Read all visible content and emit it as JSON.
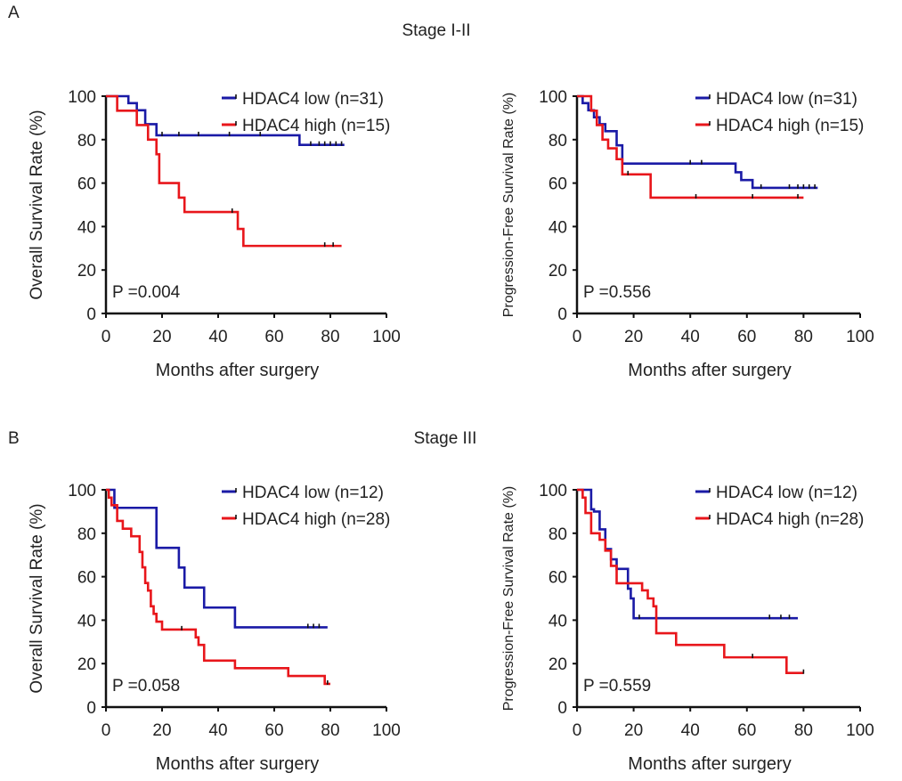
{
  "figure": {
    "panel_a_letter": "A",
    "panel_a_title": "Stage I-II",
    "panel_b_letter": "B",
    "panel_b_title": "Stage III"
  },
  "colors": {
    "low": "#1a1aa6",
    "high": "#e8161b",
    "axis": "#111111"
  },
  "chart_data": [
    {
      "type": "line",
      "subtype": "kaplan-meier",
      "panel": "A",
      "title": "Stage I-II",
      "xlabel": "Months after surgery",
      "ylabel": "Overall Survival Rate (%)",
      "xlim": [
        0,
        100
      ],
      "ylim": [
        0,
        100
      ],
      "xticks": [
        "0",
        "20",
        "40",
        "60",
        "80",
        "100"
      ],
      "yticks": [
        "0",
        "20",
        "40",
        "60",
        "80",
        "100"
      ],
      "p_value": "P =0.004",
      "legend_position": "top-right",
      "series": [
        {
          "name": "HDAC4 low (n=31)",
          "color": "#1a1aa6",
          "x": [
            0,
            8,
            11,
            14,
            18,
            69,
            85
          ],
          "y": [
            100,
            96.8,
            93.5,
            87.1,
            82,
            77.6,
            77.6
          ],
          "censor_x": [
            20,
            26,
            33,
            44,
            55,
            73,
            76,
            78,
            80,
            82,
            84
          ]
        },
        {
          "name": "HDAC4 high (n=15)",
          "color": "#e8161b",
          "x": [
            0,
            4,
            11,
            15,
            18,
            19,
            26,
            28,
            47,
            49,
            84
          ],
          "y": [
            100,
            93.3,
            86.7,
            80,
            73.3,
            60,
            53.3,
            46.7,
            38.9,
            31.1,
            31.1
          ],
          "censor_x": [
            45,
            78,
            81
          ]
        }
      ]
    },
    {
      "type": "line",
      "subtype": "kaplan-meier",
      "panel": "A",
      "title": "Stage I-II",
      "xlabel": "Months after surgery",
      "ylabel": "Progression-Free Survival Rate (%)",
      "xlim": [
        0,
        100
      ],
      "ylim": [
        0,
        100
      ],
      "xticks": [
        "0",
        "20",
        "40",
        "60",
        "80",
        "100"
      ],
      "yticks": [
        "0",
        "20",
        "40",
        "60",
        "80",
        "100"
      ],
      "p_value": "P =0.556",
      "legend_position": "top-right",
      "series": [
        {
          "name": "HDAC4 low (n=31)",
          "color": "#1a1aa6",
          "x": [
            0,
            2,
            4,
            6,
            8,
            10,
            14,
            16,
            56,
            58,
            62,
            85
          ],
          "y": [
            100,
            96.8,
            93.5,
            90.3,
            87.1,
            83.9,
            77.4,
            69,
            65,
            61.4,
            57.8,
            57.8
          ],
          "censor_x": [
            40,
            44,
            65,
            75,
            78,
            80,
            82,
            84
          ]
        },
        {
          "name": "HDAC4 high (n=15)",
          "color": "#e8161b",
          "x": [
            0,
            5,
            7,
            9,
            11,
            14,
            16,
            26,
            80
          ],
          "y": [
            100,
            93.3,
            86.7,
            80,
            76,
            71,
            64,
            53.3,
            53.3
          ],
          "censor_x": [
            18,
            42,
            62,
            78
          ]
        }
      ]
    },
    {
      "type": "line",
      "subtype": "kaplan-meier",
      "panel": "B",
      "title": "Stage III",
      "xlabel": "Months after surgery",
      "ylabel": "Overall Survival Rate (%)",
      "xlim": [
        0,
        100
      ],
      "ylim": [
        0,
        100
      ],
      "xticks": [
        "0",
        "20",
        "40",
        "60",
        "80",
        "100"
      ],
      "yticks": [
        "0",
        "20",
        "40",
        "60",
        "80",
        "100"
      ],
      "p_value": "P =0.058",
      "legend_position": "top-right",
      "series": [
        {
          "name": "HDAC4 low (n=12)",
          "color": "#1a1aa6",
          "x": [
            0,
            3,
            18,
            26,
            28,
            35,
            46,
            79
          ],
          "y": [
            100,
            91.7,
            73.3,
            64.2,
            55,
            45.8,
            36.7,
            36.7
          ],
          "censor_x": [
            72,
            74,
            76
          ]
        },
        {
          "name": "HDAC4 high (n=28)",
          "color": "#e8161b",
          "x": [
            0,
            1,
            2,
            4,
            6,
            9,
            12,
            13,
            14,
            15,
            16,
            17,
            18,
            20,
            32,
            33,
            35,
            46,
            65,
            78,
            80
          ],
          "y": [
            100,
            96.4,
            92.9,
            85.7,
            82.1,
            78.6,
            71.4,
            64.3,
            57.1,
            53.6,
            46.4,
            42.9,
            39.3,
            35.7,
            32.1,
            28.6,
            21.4,
            17.9,
            14.3,
            10.7,
            10.7
          ],
          "censor_x": [
            27,
            79
          ]
        }
      ]
    },
    {
      "type": "line",
      "subtype": "kaplan-meier",
      "panel": "B",
      "title": "Stage III",
      "xlabel": "Months after surgery",
      "ylabel": "Progression-Free Survival Rate (%)",
      "xlim": [
        0,
        100
      ],
      "ylim": [
        0,
        100
      ],
      "xticks": [
        "0",
        "20",
        "40",
        "60",
        "80",
        "100"
      ],
      "yticks": [
        "0",
        "20",
        "40",
        "60",
        "80",
        "100"
      ],
      "p_value": "P =0.559",
      "legend_position": "top-right",
      "series": [
        {
          "name": "HDAC4 low (n=12)",
          "color": "#1a1aa6",
          "x": [
            0,
            5,
            6,
            8,
            10,
            12,
            14,
            18,
            19,
            20,
            78
          ],
          "y": [
            100,
            91,
            90,
            81.8,
            72.7,
            68,
            63.6,
            54.5,
            50,
            40.9,
            40.9
          ],
          "censor_x": [
            22,
            68,
            72,
            75
          ]
        },
        {
          "name": "HDAC4 high (n=28)",
          "color": "#e8161b",
          "x": [
            0,
            2,
            3,
            5,
            8,
            10,
            12,
            14,
            23,
            25,
            27,
            28,
            35,
            52,
            74,
            80
          ],
          "y": [
            100,
            96.4,
            89.3,
            80,
            77,
            72,
            65,
            57,
            53.7,
            50,
            46.4,
            34,
            28.6,
            22.9,
            15.7,
            15.7
          ],
          "censor_x": [
            62,
            80
          ]
        }
      ]
    }
  ]
}
